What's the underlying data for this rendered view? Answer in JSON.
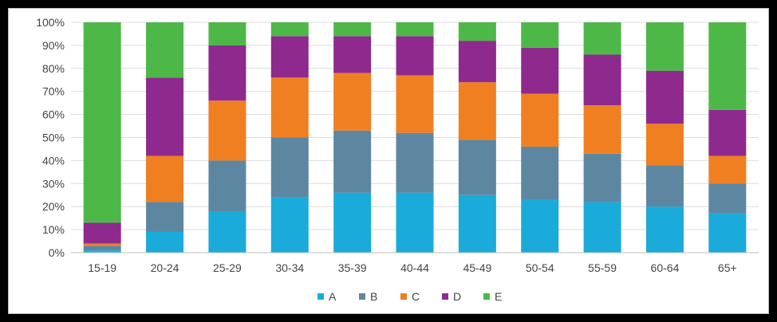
{
  "chart_data": {
    "type": "bar",
    "stacked": true,
    "title": "",
    "xlabel": "",
    "ylabel": "",
    "ylim": [
      0,
      100
    ],
    "y_tick_format": "percent",
    "y_ticks": [
      "0%",
      "10%",
      "20%",
      "30%",
      "40%",
      "50%",
      "60%",
      "70%",
      "80%",
      "90%",
      "100%"
    ],
    "grid": true,
    "legend_position": "bottom",
    "categories": [
      "15-19",
      "20-24",
      "25-29",
      "30-34",
      "35-39",
      "40-44",
      "45-49",
      "50-54",
      "55-59",
      "60-64",
      "65+"
    ],
    "series": [
      {
        "name": "A",
        "color": "#1aabda",
        "values": [
          1,
          9,
          18,
          24,
          26,
          26,
          25,
          23,
          22,
          20,
          17
        ]
      },
      {
        "name": "B",
        "color": "#5d87a1",
        "values": [
          2,
          13,
          22,
          26,
          27,
          26,
          24,
          23,
          21,
          18,
          13
        ]
      },
      {
        "name": "C",
        "color": "#f07f22",
        "values": [
          1,
          20,
          26,
          26,
          25,
          25,
          25,
          23,
          21,
          18,
          12
        ]
      },
      {
        "name": "D",
        "color": "#8e2a8e",
        "values": [
          9,
          34,
          24,
          18,
          16,
          17,
          18,
          20,
          22,
          23,
          20
        ]
      },
      {
        "name": "E",
        "color": "#4db848",
        "values": [
          87,
          24,
          10,
          6,
          6,
          6,
          8,
          11,
          14,
          21,
          38
        ]
      }
    ]
  }
}
